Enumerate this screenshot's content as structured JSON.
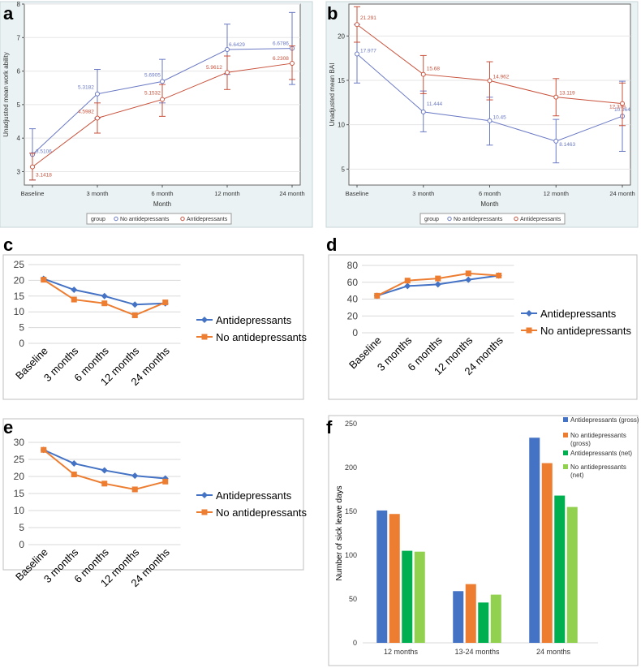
{
  "chart_data": [
    {
      "panel": "a",
      "type": "line",
      "ylabel": "Unadjusted mean work ability",
      "xlabel": "Month",
      "categories": [
        "Baseline",
        "3 month",
        "6 month",
        "12 month",
        "24 month"
      ],
      "ylim": [
        2.6,
        8
      ],
      "yticks": [
        "3",
        "4",
        "5",
        "6",
        "7",
        "8"
      ],
      "legend_title": "group",
      "colors": {
        "no_ad": "#6a79c4",
        "ad": "#c8513b"
      },
      "series": [
        {
          "name": "No antidepressants",
          "values": [
            3.5106,
            5.3182,
            5.6905,
            6.6429,
            6.6786
          ],
          "labels": [
            "3.5106",
            "5.3182",
            "5.6905",
            "6.6429",
            "6.6786"
          ],
          "lower": [
            2.75,
            4.6,
            5.05,
            5.9,
            5.6
          ],
          "upper": [
            4.28,
            6.05,
            6.35,
            7.4,
            7.75
          ]
        },
        {
          "name": "Antidepressants",
          "values": [
            3.1418,
            4.5982,
            5.1532,
            5.9612,
            6.2308
          ],
          "labels": [
            "3.1418",
            "4.5982",
            "5.1532",
            "5.9612",
            "6.2308"
          ],
          "lower": [
            2.75,
            4.15,
            4.65,
            5.45,
            5.75
          ],
          "upper": [
            3.55,
            5.05,
            5.6,
            6.45,
            6.75
          ]
        }
      ]
    },
    {
      "panel": "b",
      "type": "line",
      "ylabel": "Unadjusted mean BAI",
      "xlabel": "Month",
      "categories": [
        "Baseline",
        "3 month",
        "6 month",
        "12 month",
        "24 month"
      ],
      "ylim": [
        3.2,
        23.6
      ],
      "yticks": [
        "5",
        "10",
        "15",
        "20"
      ],
      "legend_title": "group",
      "colors": {
        "no_ad": "#6a79c4",
        "ad": "#c8513b"
      },
      "series": [
        {
          "name": "No antidepressants",
          "values": [
            17.977,
            11.444,
            10.45,
            8.1463,
            10.964
          ],
          "labels": [
            "17.977",
            "11.444",
            "10.45",
            "8.1463",
            "10.964"
          ],
          "lower": [
            14.7,
            9.2,
            7.7,
            5.7,
            7.0
          ],
          "upper": [
            21.3,
            13.8,
            13.1,
            10.6,
            14.9
          ]
        },
        {
          "name": "Antidepressants",
          "values": [
            21.291,
            15.68,
            14.962,
            13.119,
            12.379
          ],
          "labels": [
            "21.291",
            "15.68",
            "14.962",
            "13.119",
            "12.379"
          ],
          "lower": [
            19.3,
            13.5,
            12.8,
            11.0,
            9.9
          ],
          "upper": [
            23.3,
            17.8,
            17.1,
            15.2,
            14.7
          ]
        }
      ]
    },
    {
      "panel": "c",
      "type": "line",
      "categories": [
        "Baseline",
        "3 months",
        "6 months",
        "12 months",
        "24 months"
      ],
      "ylim": [
        0,
        25
      ],
      "yticks": [
        "0",
        "5",
        "10",
        "15",
        "20",
        "25"
      ],
      "colors": {
        "Antidepressants": "#4472c4",
        "No antidepressants": "#ed7d31"
      },
      "series": [
        {
          "name": "Antidepressants",
          "values": [
            20.5,
            17.0,
            15.0,
            12.3,
            12.7
          ]
        },
        {
          "name": "No antidepressants",
          "values": [
            20.2,
            13.9,
            12.7,
            8.9,
            13.0
          ]
        }
      ]
    },
    {
      "panel": "d",
      "type": "line",
      "categories": [
        "Baseline",
        "3 months",
        "6 months",
        "12 months",
        "24 months"
      ],
      "ylim": [
        0,
        80
      ],
      "yticks": [
        "0",
        "20",
        "40",
        "60",
        "80"
      ],
      "colors": {
        "Antidepressants": "#4472c4",
        "No antidepressants": "#ed7d31"
      },
      "series": [
        {
          "name": "Antidepressants",
          "values": [
            44,
            55.5,
            57.5,
            63,
            68
          ]
        },
        {
          "name": "No antidepressants",
          "values": [
            44,
            62,
            64.5,
            70.5,
            68
          ]
        }
      ]
    },
    {
      "panel": "e",
      "type": "line",
      "categories": [
        "Baseline",
        "3 months",
        "6 months",
        "12 months",
        "24 months"
      ],
      "ylim": [
        0,
        30
      ],
      "yticks": [
        "0",
        "5",
        "10",
        "15",
        "20",
        "25",
        "30"
      ],
      "colors": {
        "Antidepressants": "#4472c4",
        "No antidepressants": "#ed7d31"
      },
      "series": [
        {
          "name": "Antidepressants",
          "values": [
            27.8,
            23.8,
            21.8,
            20.2,
            19.4
          ]
        },
        {
          "name": "No antidepressants",
          "values": [
            27.8,
            20.6,
            17.9,
            16.2,
            18.5
          ]
        }
      ]
    },
    {
      "panel": "f",
      "type": "bar",
      "ylabel": "Number of sick leave days",
      "categories": [
        "12 months",
        "13-24 months",
        "24 months"
      ],
      "ylim": [
        0,
        250
      ],
      "yticks": [
        "0",
        "50",
        "100",
        "150",
        "200",
        "250"
      ],
      "series": [
        {
          "name": "Antidepressants (gross)",
          "color": "#4472c4",
          "values": [
            151,
            59,
            234
          ]
        },
        {
          "name": "No antidepressants (gross)",
          "color": "#ed7d31",
          "values": [
            147,
            67,
            205
          ]
        },
        {
          "name": "Antidepressants (net)",
          "color": "#00b050",
          "values": [
            105,
            46,
            168
          ]
        },
        {
          "name": "No antidepressants (net)",
          "color": "#92d050",
          "values": [
            104,
            55,
            155
          ]
        }
      ]
    }
  ]
}
